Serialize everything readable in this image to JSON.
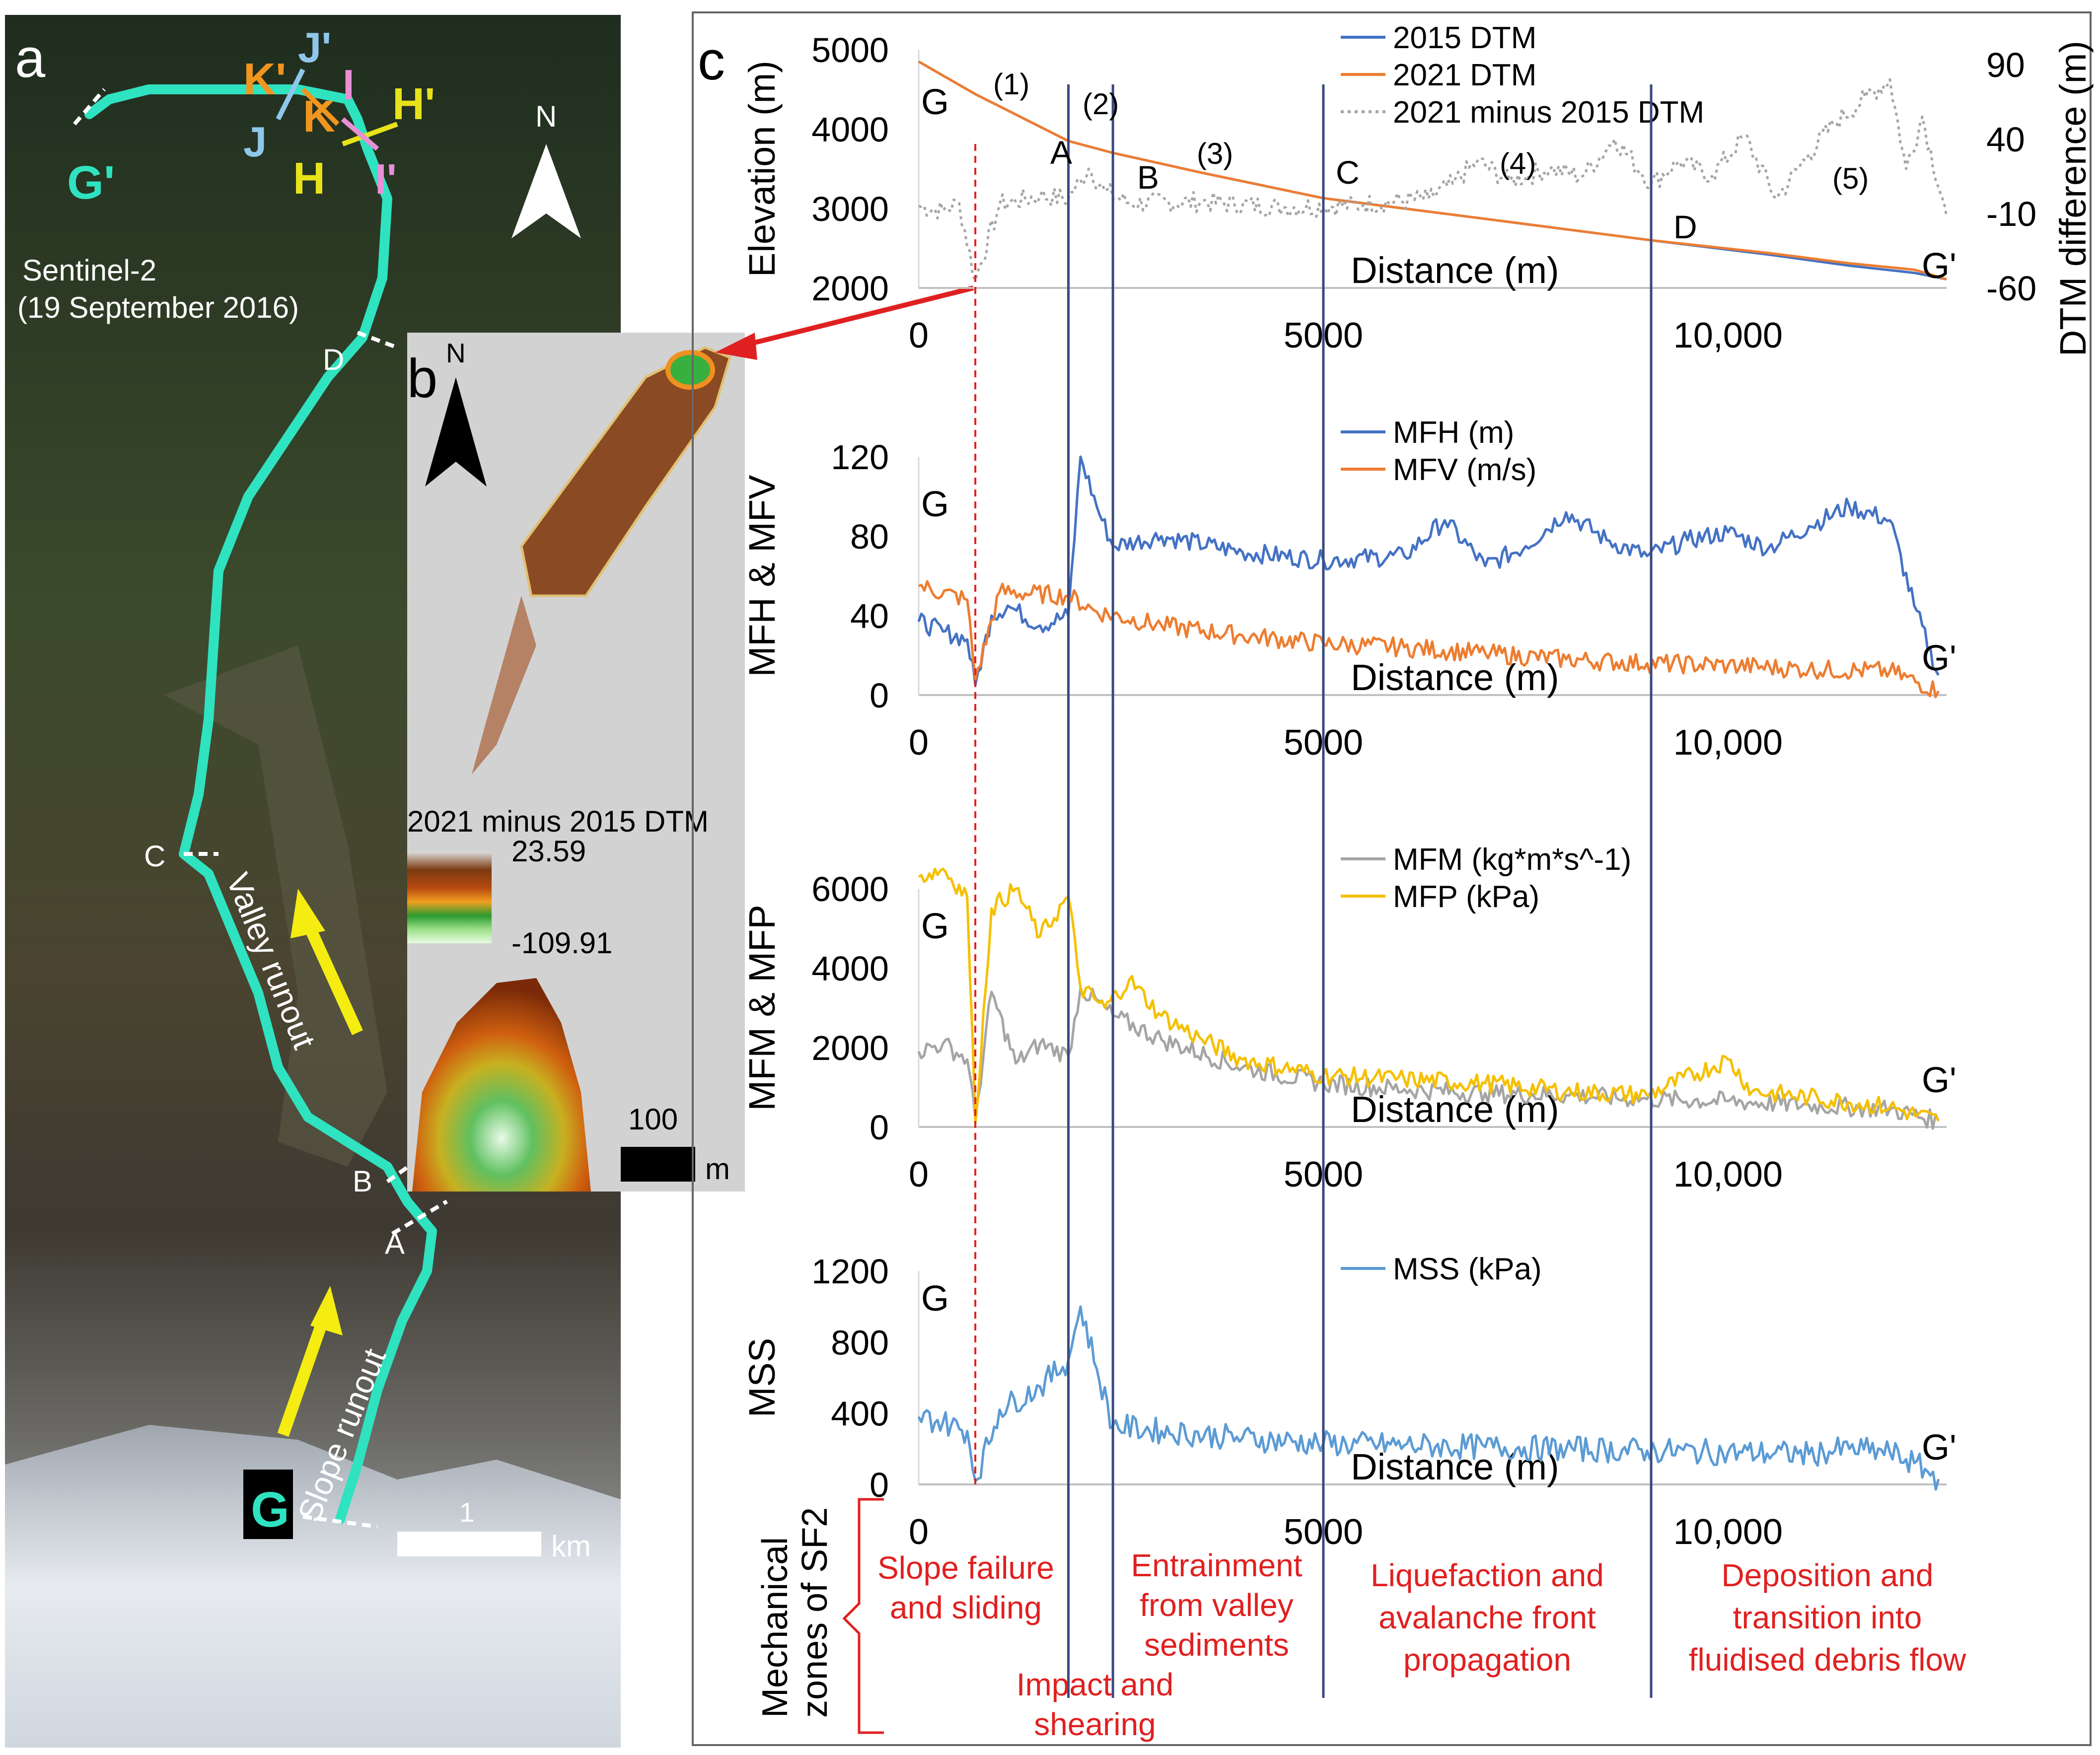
{
  "panel_a": {
    "label": "a",
    "sentinel_line1": "Sentinel-2",
    "sentinel_line2": "(19 September 2016)",
    "north": "N",
    "valley_runout": "Valley runout",
    "slope_runout": "Slope runout",
    "scale_value": "1",
    "scale_unit": "km",
    "points": {
      "G": "G",
      "Gp": "G'",
      "A": "A",
      "B": "B",
      "C": "C",
      "D": "D",
      "H": "H",
      "Hp": "H'",
      "I": "I",
      "Ip": "I'",
      "J": "J",
      "Jp": "J'",
      "K": "K",
      "Kp": "K'"
    },
    "colors": {
      "path": "#2fe2c0",
      "arrow": "#f5ec12",
      "H": "#e8e21a",
      "I": "#e88fd6",
      "J": "#8ec7ea",
      "K": "#f0951e"
    }
  },
  "panel_b": {
    "label": "b",
    "north": "N",
    "legend_title": "2021 minus 2015 DTM",
    "legend_max": "23.59",
    "legend_min": "-109.91",
    "scale_value": "100",
    "scale_unit": "m"
  },
  "panel_c": {
    "label": "c",
    "xlabel": "Distance (m)",
    "x_ticks": [
      "0",
      "5000",
      "10,000"
    ],
    "zones": [
      {
        "label": "(1)"
      },
      {
        "label": "(2)"
      },
      {
        "label": "(3)"
      },
      {
        "label": "(4)"
      },
      {
        "label": "(5)"
      }
    ],
    "section_letters": [
      "A",
      "B",
      "C",
      "D"
    ],
    "start_letter": "G",
    "end_letter": "G'",
    "mechanical_label_line1": "Mechanical",
    "mechanical_label_line2": "zones of SF2",
    "mechanical_zones": [
      {
        "line1": "Slope failure",
        "line2": "and sliding",
        "line3": ""
      },
      {
        "line1": "Impact and",
        "line2": "shearing",
        "line3": ""
      },
      {
        "line1": "Entrainment",
        "line2": "from valley",
        "line3": "sediments"
      },
      {
        "line1": "Liquefaction and",
        "line2": "avalanche front",
        "line3": "propagation"
      },
      {
        "line1": "Deposition and",
        "line2": "transition into",
        "line3": "fluidised debris flow"
      }
    ],
    "colors": {
      "blue": "#4472c4",
      "orange": "#ed7d31",
      "grey": "#a5a5a5",
      "yellow": "#f5c000",
      "light_blue": "#5b9bd5",
      "red": "#e02020",
      "zone_line": "#3a4a80"
    }
  },
  "chart_data": [
    {
      "type": "line",
      "ylabel": "Elevation (m)",
      "y2label": "DTM difference (m)",
      "xlabel": "Distance (m)",
      "xlim": [
        0,
        12700
      ],
      "ylim": [
        2000,
        5000
      ],
      "y2lim": [
        -60,
        100
      ],
      "y_ticks": [
        "2000",
        "3000",
        "4000",
        "5000"
      ],
      "y2_ticks": [
        "-60",
        "-10",
        "40",
        "90"
      ],
      "section_boundaries": {
        "A": 1850,
        "B": 2400,
        "C": 5000,
        "D": 9050
      },
      "failure_line_x": 700,
      "series": [
        {
          "name": "2015 DTM",
          "axis": "left",
          "x": [
            0,
            700,
            1850,
            2400,
            3500,
            5000,
            7000,
            9050,
            10500,
            11500,
            12300,
            12700
          ],
          "values": [
            4850,
            4440,
            3850,
            3700,
            3450,
            3130,
            2870,
            2600,
            2420,
            2280,
            2190,
            2110
          ]
        },
        {
          "name": "2021 DTM",
          "axis": "left",
          "x": [
            0,
            700,
            1850,
            2400,
            3500,
            5000,
            7000,
            9050,
            10500,
            11500,
            12300,
            12700
          ],
          "values": [
            4850,
            4440,
            3850,
            3700,
            3450,
            3130,
            2870,
            2600,
            2440,
            2310,
            2230,
            2110
          ]
        },
        {
          "name": "2021 minus 2015 DTM",
          "axis": "right",
          "x": [
            0,
            300,
            500,
            700,
            1000,
            1500,
            1850,
            2100,
            2300,
            2600,
            3500,
            4500,
            5500,
            6300,
            6600,
            6900,
            7300,
            7800,
            8200,
            8600,
            9050,
            9400,
            9800,
            10200,
            10600,
            11000,
            11300,
            11700,
            12000,
            12200,
            12400,
            12700
          ],
          "values": [
            -5,
            -8,
            -3,
            -55,
            -4,
            2,
            0,
            20,
            5,
            -3,
            -2,
            -6,
            -4,
            0,
            10,
            25,
            12,
            20,
            15,
            40,
            10,
            25,
            15,
            42,
            0,
            30,
            50,
            68,
            80,
            20,
            55,
            -12
          ]
        }
      ]
    },
    {
      "type": "line",
      "ylabel": "MFH & MFV",
      "xlabel": "Distance (m)",
      "xlim": [
        0,
        12700
      ],
      "ylim": [
        0,
        120
      ],
      "y_ticks": [
        "0",
        "40",
        "80",
        "120"
      ],
      "series": [
        {
          "name": "MFH (m)",
          "x": [
            0,
            300,
            600,
            700,
            900,
            1100,
            1500,
            1850,
            2000,
            2200,
            2400,
            3000,
            4000,
            5000,
            6000,
            6500,
            7000,
            7500,
            8000,
            8500,
            9000,
            9500,
            10000,
            10500,
            11000,
            11500,
            12000,
            12300,
            12600
          ],
          "values": [
            37,
            32,
            28,
            5,
            40,
            45,
            35,
            40,
            120,
            95,
            75,
            80,
            72,
            68,
            70,
            88,
            65,
            75,
            92,
            78,
            70,
            78,
            82,
            74,
            85,
            95,
            88,
            45,
            10
          ]
        },
        {
          "name": "MFV (m/s)",
          "x": [
            0,
            600,
            700,
            1000,
            1850,
            2200,
            3000,
            4000,
            5000,
            6000,
            7000,
            8000,
            9000,
            10000,
            11000,
            12000,
            12600
          ],
          "values": [
            55,
            48,
            8,
            52,
            50,
            42,
            35,
            30,
            26,
            24,
            21,
            18,
            16,
            15,
            13,
            12,
            2
          ]
        }
      ]
    },
    {
      "type": "line",
      "ylabel": "MFM & MFP",
      "xlabel": "Distance (m)",
      "xlim": [
        0,
        12700
      ],
      "ylim": [
        0,
        6000
      ],
      "y_ticks": [
        "0",
        "2000",
        "4000",
        "6000"
      ],
      "series": [
        {
          "name": "MFM (kg*m*s^-1)",
          "x": [
            0,
            300,
            600,
            700,
            900,
            1200,
            1500,
            1850,
            2000,
            2400,
            3000,
            4000,
            5000,
            6000,
            7000,
            8000,
            9000,
            10000,
            11000,
            12000,
            12600
          ],
          "values": [
            1900,
            2100,
            1700,
            200,
            3400,
            1600,
            2100,
            1800,
            3500,
            2800,
            2200,
            1500,
            1100,
            950,
            850,
            800,
            700,
            650,
            550,
            450,
            150
          ]
        },
        {
          "name": "MFP (kPa)",
          "x": [
            0,
            300,
            600,
            700,
            900,
            1200,
            1500,
            1850,
            2000,
            2300,
            2600,
            3000,
            3500,
            4000,
            5000,
            6000,
            7000,
            8000,
            9000,
            10000,
            10300,
            11000,
            12000,
            12600
          ],
          "values": [
            6300,
            6500,
            5800,
            100,
            5500,
            6000,
            4800,
            5800,
            3500,
            3000,
            3700,
            2800,
            2200,
            1700,
            1300,
            1200,
            1100,
            900,
            800,
            1700,
            900,
            750,
            500,
            150
          ]
        }
      ]
    },
    {
      "type": "line",
      "ylabel": "MSS",
      "xlabel": "Distance (m)",
      "xlim": [
        0,
        12700
      ],
      "ylim": [
        0,
        1200
      ],
      "y_ticks": [
        "0",
        "400",
        "800",
        "1200"
      ],
      "series": [
        {
          "name": "MSS (kPa)",
          "x": [
            0,
            300,
            600,
            700,
            1000,
            1500,
            1850,
            2000,
            2200,
            2400,
            3000,
            4000,
            5000,
            6000,
            7000,
            8000,
            9000,
            10000,
            11000,
            11500,
            12000,
            12300,
            12600
          ],
          "values": [
            380,
            350,
            300,
            20,
            420,
            550,
            700,
            1000,
            650,
            330,
            300,
            260,
            230,
            220,
            210,
            200,
            190,
            180,
            170,
            200,
            180,
            120,
            30
          ]
        }
      ]
    }
  ]
}
